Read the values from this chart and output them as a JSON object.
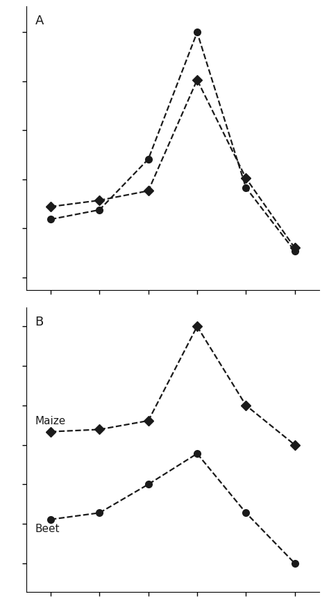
{
  "x": [
    1,
    2,
    3,
    4,
    5,
    6
  ],
  "panel_A": {
    "maize": [
      0.0,
      0.2,
      0.5,
      4.0,
      0.9,
      -1.3
    ],
    "beet": [
      -0.4,
      -0.1,
      1.5,
      5.5,
      0.6,
      -1.4
    ]
  },
  "panel_B": {
    "maize": [
      0.2,
      0.3,
      0.7,
      5.0,
      1.4,
      -0.4
    ],
    "beet": [
      -3.8,
      -3.5,
      -2.2,
      -0.8,
      -3.5,
      -5.8
    ]
  },
  "label_A": "A",
  "label_B": "B",
  "maize_label": "Maize",
  "beet_label": "Beet",
  "line_color": "#1a1a1a",
  "bg_color": "#ffffff"
}
